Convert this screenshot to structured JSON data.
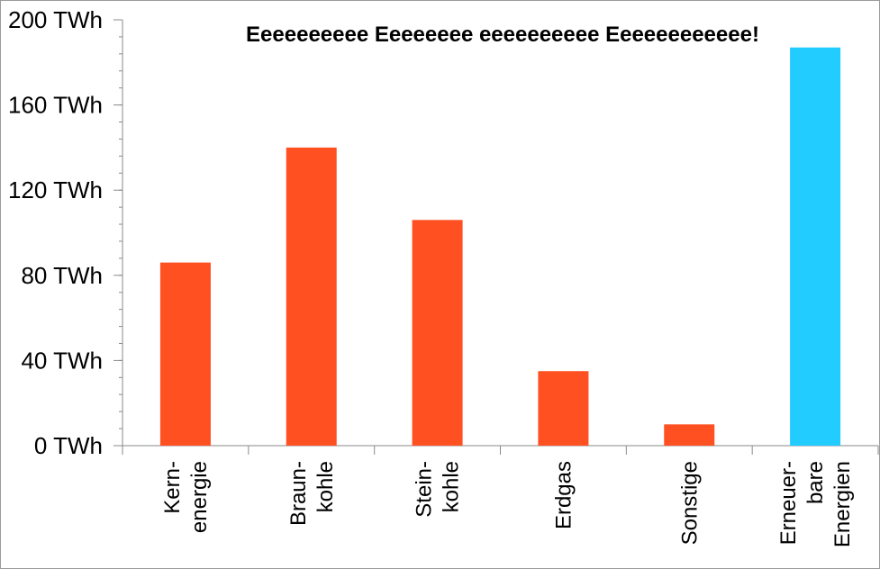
{
  "chart_data": {
    "type": "bar",
    "title": "Eeeeeeeeee Eeeeeeee eeeeeeeeee Eeeeeeeeeeee!",
    "categories": [
      [
        "Kern-",
        "energie"
      ],
      [
        "Braun-",
        "kohle"
      ],
      [
        "Stein-",
        "kohle"
      ],
      [
        "Erdgas"
      ],
      [
        "Sonstige"
      ],
      [
        "Erneuer-",
        "bare",
        "Energien"
      ]
    ],
    "values": [
      86,
      140,
      106,
      35,
      10,
      187
    ],
    "colors": [
      "#ff5022",
      "#ff5022",
      "#ff5022",
      "#ff5022",
      "#ff5022",
      "#22ccff"
    ],
    "unit": "TWh",
    "ylim": [
      0,
      200
    ],
    "yticks": [
      0,
      40,
      80,
      120,
      160,
      200
    ],
    "ytick_labels": [
      "0 TWh",
      "40 TWh",
      "80 TWh",
      "120 TWh",
      "160 TWh",
      "200 TWh"
    ],
    "xlabel": "",
    "ylabel": "",
    "grid": false,
    "legend": false
  }
}
